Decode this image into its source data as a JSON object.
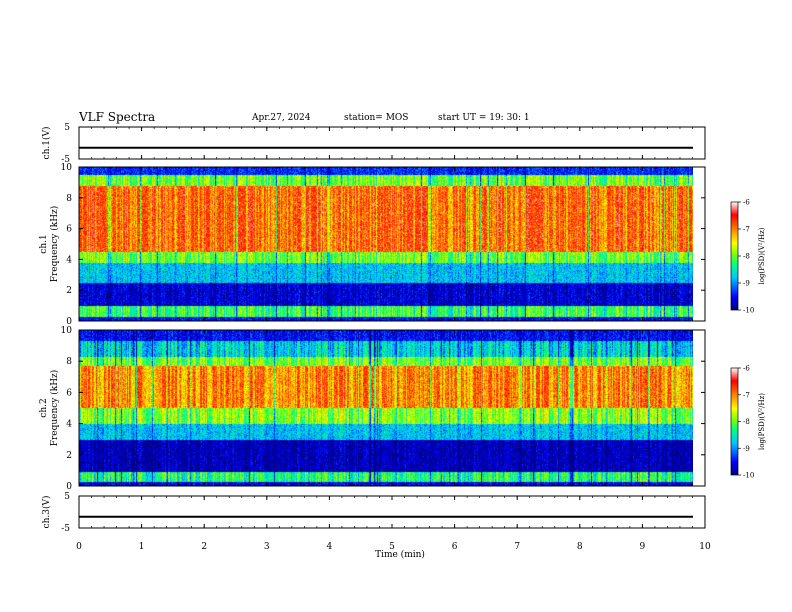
{
  "header": {
    "title": "VLF Spectra",
    "date": "Apr.27, 2024",
    "station": "station= MOS",
    "start": "start  UT =   19: 30: 1"
  },
  "colors": {
    "spectrogram_scale": [
      "#000080",
      "#0000ff",
      "#00c8ff",
      "#00ff80",
      "#80ff00",
      "#ffff00",
      "#ff8000",
      "#ff0000",
      "#ffffff"
    ]
  },
  "chart_data": [
    {
      "type": "line",
      "name": "ch1-voltage",
      "ylabel": "ch.1(V)",
      "ylim": [
        -5,
        5
      ],
      "yticks": [
        "5",
        "-5"
      ],
      "level": -1.5
    },
    {
      "type": "heatmap",
      "name": "ch1-spectrogram",
      "ylabel": "ch.1\nFrequency (kHz)",
      "ylim": [
        0,
        10
      ],
      "yticks": [
        "0",
        "2",
        "4",
        "6",
        "8",
        "10"
      ],
      "colorbar": {
        "label": "log(PSD)(V²/Hz)",
        "range": [
          -10,
          -6
        ],
        "ticks": [
          "-6",
          "-7",
          "-8",
          "-9",
          "-10"
        ]
      }
    },
    {
      "type": "heatmap",
      "name": "ch2-spectrogram",
      "ylabel": "ch.2\nFrequency (kHz)",
      "ylim": [
        0,
        10
      ],
      "yticks": [
        "0",
        "2",
        "4",
        "6",
        "8",
        "10"
      ],
      "colorbar": {
        "label": "log(PSD)(V²/Hz)",
        "range": [
          -10,
          -6
        ],
        "ticks": [
          "-6",
          "-7",
          "-8",
          "-9",
          "-10"
        ]
      }
    },
    {
      "type": "line",
      "name": "ch3-voltage",
      "ylabel": "ch.3(V)",
      "ylim": [
        -5,
        5
      ],
      "yticks": [
        "5",
        "-5"
      ],
      "level": -1.5
    }
  ],
  "xaxis": {
    "label": "Time (min)",
    "xlim": [
      0,
      10
    ],
    "ticks": [
      "0",
      "1",
      "2",
      "3",
      "4",
      "5",
      "6",
      "7",
      "8",
      "9",
      "10"
    ]
  }
}
